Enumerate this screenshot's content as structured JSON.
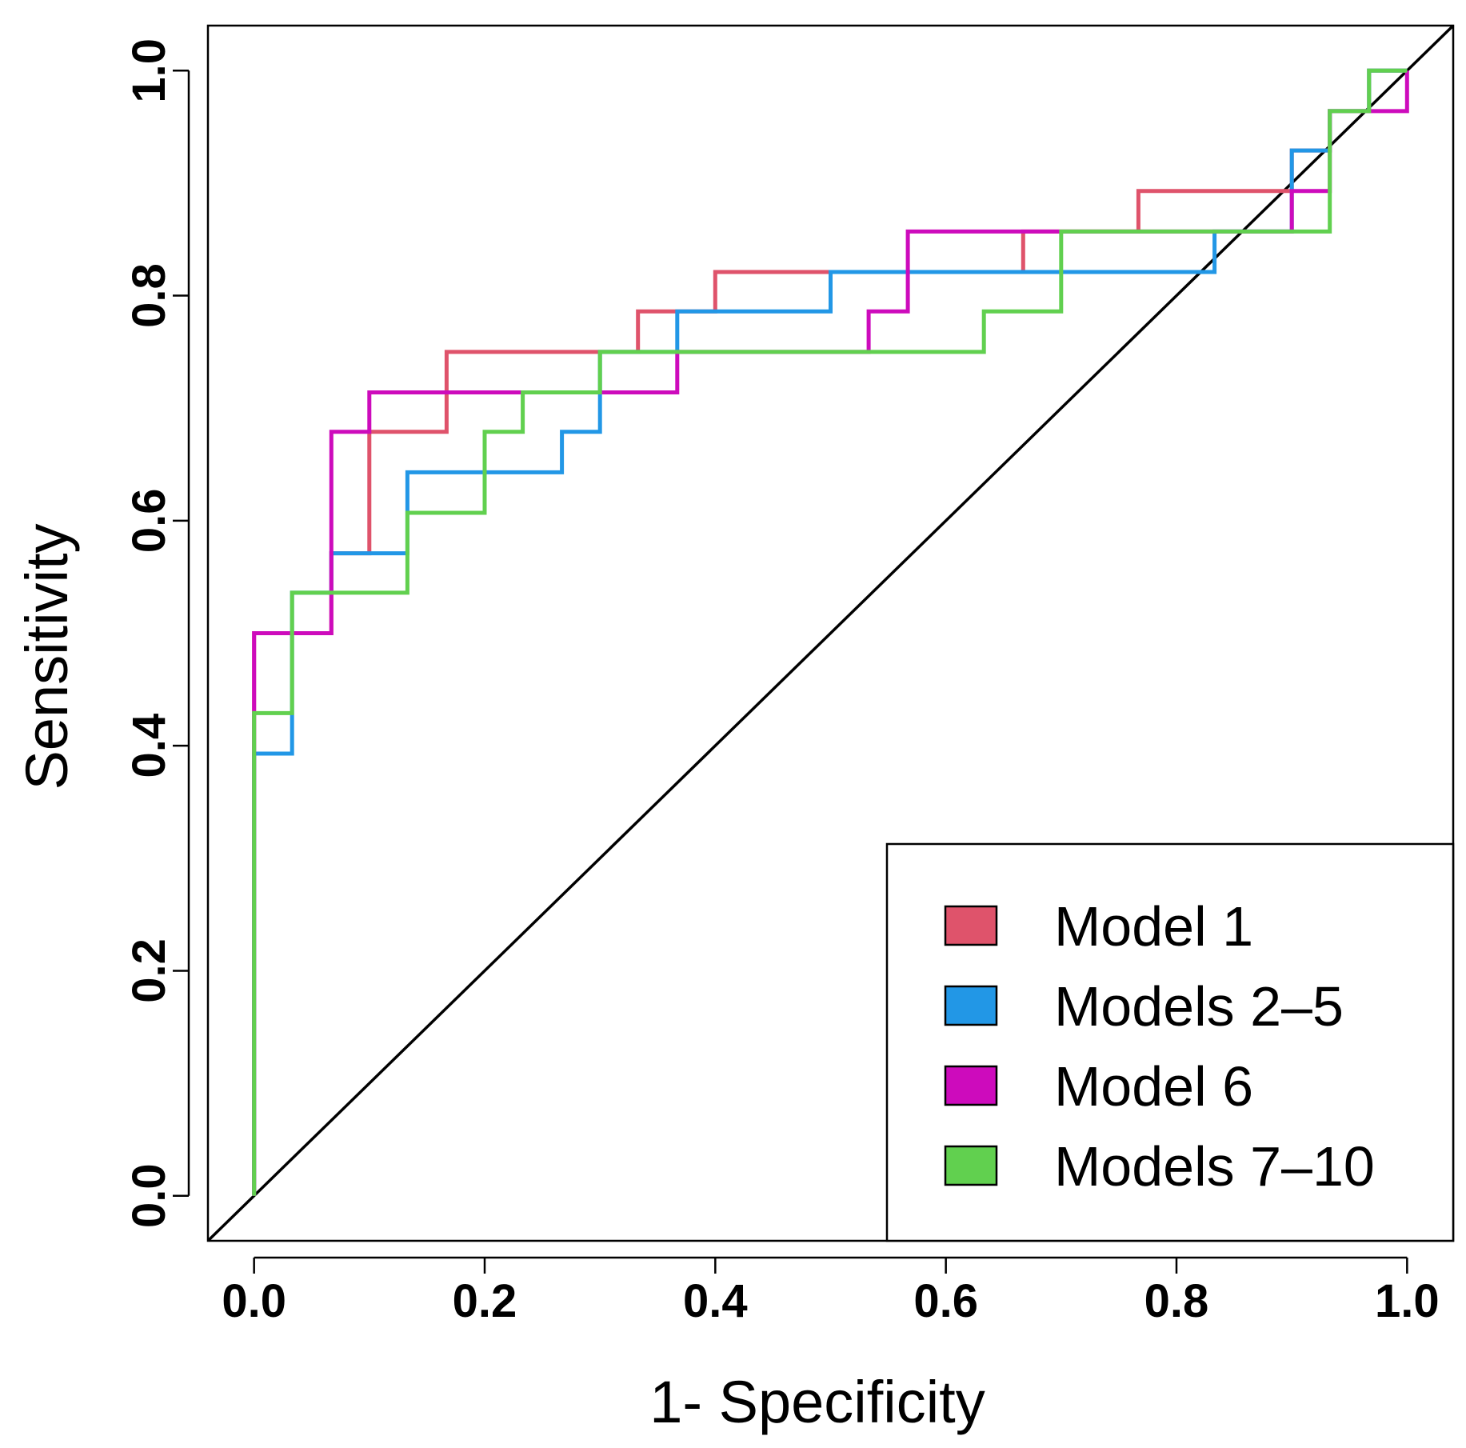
{
  "chart_data": {
    "type": "line",
    "subtype": "roc-step",
    "xlabel": "1- Specificity",
    "ylabel": "Sensitivity",
    "xlim": [
      -0.04,
      1.04
    ],
    "ylim": [
      -0.04,
      1.04
    ],
    "x_ticks": [
      0.0,
      0.2,
      0.4,
      0.6,
      0.8,
      1.0
    ],
    "y_ticks": [
      0.0,
      0.2,
      0.4,
      0.6,
      0.8,
      1.0
    ],
    "x_tick_labels": [
      "0.0",
      "0.2",
      "0.4",
      "0.6",
      "0.8",
      "1.0"
    ],
    "y_tick_labels": [
      "0.0",
      "0.2",
      "0.4",
      "0.6",
      "0.8",
      "1.0"
    ],
    "reference_line": {
      "name": "chance-diagonal",
      "color": "#000000",
      "points": [
        [
          -0.04,
          -0.04
        ],
        [
          1.04,
          1.04
        ]
      ]
    },
    "legend": {
      "placement": "bottom-right"
    },
    "series": [
      {
        "name": "Model 1",
        "color": "#DF536B",
        "points": [
          [
            0,
            0
          ],
          [
            0,
            0.429
          ],
          [
            0,
            0.5
          ],
          [
            0.067,
            0.5
          ],
          [
            0.067,
            0.571
          ],
          [
            0.1,
            0.571
          ],
          [
            0.1,
            0.679
          ],
          [
            0.167,
            0.679
          ],
          [
            0.167,
            0.75
          ],
          [
            0.333,
            0.75
          ],
          [
            0.333,
            0.786
          ],
          [
            0.4,
            0.786
          ],
          [
            0.4,
            0.821
          ],
          [
            0.667,
            0.821
          ],
          [
            0.667,
            0.857
          ],
          [
            0.767,
            0.857
          ],
          [
            0.767,
            0.893
          ],
          [
            0.9,
            0.893
          ],
          [
            0.9,
            0.929
          ],
          [
            0.933,
            0.929
          ],
          [
            0.933,
            0.964
          ],
          [
            0.967,
            0.964
          ],
          [
            0.967,
            1.0
          ],
          [
            1.0,
            1.0
          ]
        ]
      },
      {
        "name": "Models 2–5",
        "color": "#2297E6",
        "points": [
          [
            0,
            0
          ],
          [
            0,
            0.393
          ],
          [
            0.033,
            0.393
          ],
          [
            0.033,
            0.536
          ],
          [
            0.067,
            0.536
          ],
          [
            0.067,
            0.571
          ],
          [
            0.133,
            0.571
          ],
          [
            0.133,
            0.643
          ],
          [
            0.267,
            0.643
          ],
          [
            0.267,
            0.679
          ],
          [
            0.3,
            0.679
          ],
          [
            0.3,
            0.75
          ],
          [
            0.367,
            0.75
          ],
          [
            0.367,
            0.786
          ],
          [
            0.5,
            0.786
          ],
          [
            0.5,
            0.821
          ],
          [
            0.833,
            0.821
          ],
          [
            0.833,
            0.857
          ],
          [
            0.9,
            0.857
          ],
          [
            0.9,
            0.929
          ],
          [
            0.933,
            0.929
          ],
          [
            0.933,
            0.964
          ],
          [
            0.967,
            0.964
          ],
          [
            0.967,
            1.0
          ],
          [
            1.0,
            1.0
          ]
        ]
      },
      {
        "name": "Model 6",
        "color": "#CD0BBC",
        "points": [
          [
            0,
            0
          ],
          [
            0,
            0.429
          ],
          [
            0,
            0.5
          ],
          [
            0.067,
            0.5
          ],
          [
            0.067,
            0.679
          ],
          [
            0.1,
            0.679
          ],
          [
            0.1,
            0.714
          ],
          [
            0.233,
            0.714
          ],
          [
            0.367,
            0.714
          ],
          [
            0.367,
            0.75
          ],
          [
            0.533,
            0.75
          ],
          [
            0.533,
            0.786
          ],
          [
            0.567,
            0.786
          ],
          [
            0.567,
            0.857
          ],
          [
            0.9,
            0.857
          ],
          [
            0.9,
            0.893
          ],
          [
            0.933,
            0.893
          ],
          [
            0.933,
            0.964
          ],
          [
            1.0,
            0.964
          ],
          [
            1.0,
            1.0
          ]
        ]
      },
      {
        "name": "Models 7–10",
        "color": "#61D04F",
        "points": [
          [
            0,
            0
          ],
          [
            0,
            0.429
          ],
          [
            0.033,
            0.429
          ],
          [
            0.033,
            0.536
          ],
          [
            0.133,
            0.536
          ],
          [
            0.133,
            0.607
          ],
          [
            0.2,
            0.607
          ],
          [
            0.2,
            0.679
          ],
          [
            0.233,
            0.679
          ],
          [
            0.233,
            0.714
          ],
          [
            0.3,
            0.714
          ],
          [
            0.3,
            0.75
          ],
          [
            0.633,
            0.75
          ],
          [
            0.633,
            0.786
          ],
          [
            0.7,
            0.786
          ],
          [
            0.7,
            0.857
          ],
          [
            0.933,
            0.857
          ],
          [
            0.933,
            0.964
          ],
          [
            0.967,
            0.964
          ],
          [
            0.967,
            1.0
          ],
          [
            1.0,
            1.0
          ]
        ]
      }
    ]
  }
}
